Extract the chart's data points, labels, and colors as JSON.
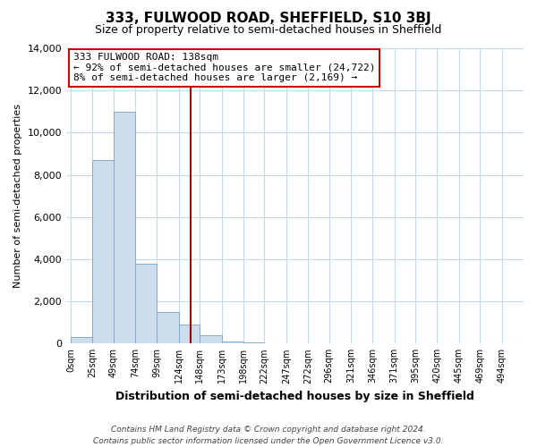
{
  "title": "333, FULWOOD ROAD, SHEFFIELD, S10 3BJ",
  "subtitle": "Size of property relative to semi-detached houses in Sheffield",
  "xlabel": "Distribution of semi-detached houses by size in Sheffield",
  "ylabel": "Number of semi-detached properties",
  "bar_color": "#ccdded",
  "bar_edge_color": "#88aacc",
  "property_line_color": "#990000",
  "property_value": 138,
  "annotation_line1": "333 FULWOOD ROAD: 138sqm",
  "annotation_line2": "← 92% of semi-detached houses are smaller (24,722)",
  "annotation_line3": "8% of semi-detached houses are larger (2,169) →",
  "bin_edges": [
    0,
    25,
    49,
    74,
    99,
    124,
    148,
    173,
    198,
    222,
    247,
    272,
    296,
    321,
    346,
    371,
    395,
    420,
    445,
    469,
    494
  ],
  "bin_heights": [
    300,
    8700,
    11000,
    3800,
    1500,
    900,
    400,
    100,
    50,
    0,
    0,
    0,
    0,
    0,
    0,
    0,
    0,
    0,
    0,
    0
  ],
  "ylim": [
    0,
    14000
  ],
  "xlim": [
    -5,
    519
  ],
  "tick_positions": [
    0,
    25,
    49,
    74,
    99,
    124,
    148,
    173,
    198,
    222,
    247,
    272,
    296,
    321,
    346,
    371,
    395,
    420,
    445,
    469,
    494
  ],
  "tick_labels": [
    "0sqm",
    "25sqm",
    "49sqm",
    "74sqm",
    "99sqm",
    "124sqm",
    "148sqm",
    "173sqm",
    "198sqm",
    "222sqm",
    "247sqm",
    "272sqm",
    "296sqm",
    "321sqm",
    "346sqm",
    "371sqm",
    "395sqm",
    "420sqm",
    "445sqm",
    "469sqm",
    "494sqm"
  ],
  "footer_line1": "Contains HM Land Registry data © Crown copyright and database right 2024.",
  "footer_line2": "Contains public sector information licensed under the Open Government Licence v3.0.",
  "background_color": "#ffffff",
  "grid_color": "#c8d8e8",
  "title_fontsize": 11,
  "subtitle_fontsize": 9,
  "xlabel_fontsize": 9,
  "ylabel_fontsize": 8,
  "tick_fontsize": 7,
  "annotation_fontsize": 8,
  "footer_fontsize": 6.5
}
